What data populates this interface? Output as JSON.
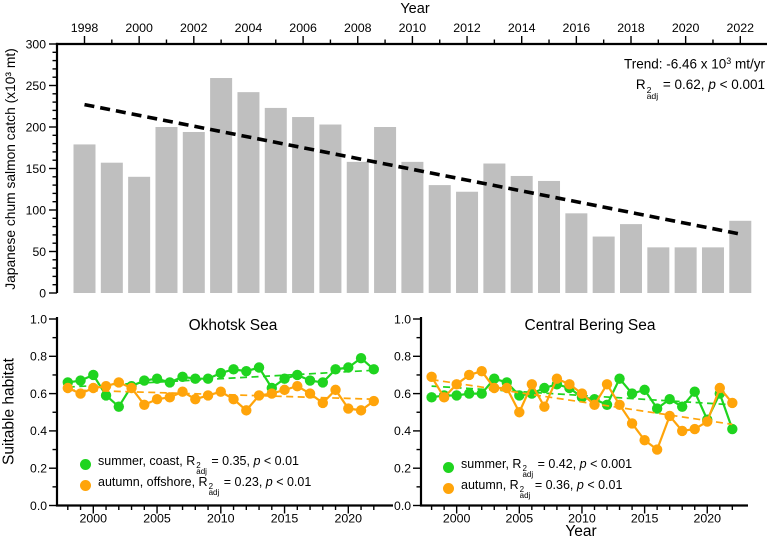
{
  "figure": {
    "background": "#ffffff",
    "text_color": "#000000",
    "shared_ylabel": "Suitable habitat"
  },
  "chart_data": [
    {
      "id": "catch",
      "type": "bar",
      "top_axis_label": "Year",
      "ylabel": "Japanese chum salmon catch (x10³ mt)",
      "ylim": [
        0,
        300
      ],
      "ytick_major_step": 50,
      "ytick_minor_step": 10,
      "grid": false,
      "xtick_major_years": [
        1998,
        2000,
        2002,
        2004,
        2006,
        2008,
        2010,
        2012,
        2014,
        2016,
        2018,
        2020,
        2022
      ],
      "years": [
        1998,
        1999,
        2000,
        2001,
        2002,
        2003,
        2004,
        2005,
        2006,
        2007,
        2008,
        2009,
        2010,
        2011,
        2012,
        2013,
        2014,
        2015,
        2016,
        2017,
        2018,
        2019,
        2020,
        2021,
        2022
      ],
      "values": [
        179,
        157,
        140,
        200,
        194,
        259,
        242,
        223,
        212,
        203,
        158,
        200,
        158,
        130,
        122,
        156,
        141,
        135,
        96,
        68,
        83,
        55,
        55,
        55,
        87
      ],
      "bar_color": "#bfbfbf",
      "trend": {
        "x0": 1998,
        "v0": 227,
        "x1": 2022,
        "v1": 71,
        "color": "#000000",
        "style": "dashed",
        "slope_per_year": -6.46
      },
      "annotation": {
        "line1": [
          {
            "t": "Trend: -6.46 x 10"
          },
          {
            "t": "3",
            "s": "sup"
          },
          {
            "t": " mt/yr"
          }
        ],
        "line2": [
          {
            "t": "R"
          },
          {
            "s": "stack",
            "top": "2",
            "bot": "adj"
          },
          {
            "t": " = 0.62, "
          },
          {
            "t": "p",
            "s": "i"
          },
          {
            "t": " < 0.001"
          }
        ]
      }
    },
    {
      "id": "okhotsk",
      "type": "line",
      "title": "Okhotsk Sea",
      "ylim": [
        0,
        1
      ],
      "ytick_major_step": 0.2,
      "ytick_minor_step": 0.1,
      "grid": false,
      "xtick_major_years": [
        2000,
        2005,
        2010,
        2015,
        2020
      ],
      "years": [
        1998,
        1999,
        2000,
        2001,
        2002,
        2003,
        2004,
        2005,
        2006,
        2007,
        2008,
        2009,
        2010,
        2011,
        2012,
        2013,
        2014,
        2015,
        2016,
        2017,
        2018,
        2019,
        2020,
        2021,
        2022
      ],
      "series": [
        {
          "name": "summer-coast",
          "color": "#1fd41f",
          "values": [
            0.66,
            0.67,
            0.7,
            0.59,
            0.53,
            0.64,
            0.67,
            0.68,
            0.66,
            0.69,
            0.68,
            0.68,
            0.71,
            0.73,
            0.72,
            0.74,
            0.63,
            0.68,
            0.7,
            0.67,
            0.66,
            0.73,
            0.74,
            0.79,
            0.73
          ],
          "trend": {
            "v0": 0.635,
            "v1": 0.725
          },
          "legend": [
            {
              "t": "summer, coast, R"
            },
            {
              "s": "stack",
              "top": "2",
              "bot": "adj"
            },
            {
              "t": " = 0.35, "
            },
            {
              "t": "p",
              "s": "i"
            },
            {
              "t": " < 0.01"
            }
          ]
        },
        {
          "name": "autumn-offshore",
          "color": "#ffa40a",
          "values": [
            0.63,
            0.6,
            0.63,
            0.64,
            0.66,
            0.63,
            0.54,
            0.57,
            0.58,
            0.61,
            0.57,
            0.59,
            0.61,
            0.57,
            0.51,
            0.59,
            0.6,
            0.62,
            0.64,
            0.6,
            0.55,
            0.62,
            0.52,
            0.51,
            0.56
          ],
          "trend": {
            "v0": 0.62,
            "v1": 0.57
          },
          "legend": [
            {
              "t": "autumn, offshore, R"
            },
            {
              "s": "stack",
              "top": "2",
              "bot": "adj"
            },
            {
              "t": " = 0.23, "
            },
            {
              "t": "p",
              "s": "i"
            },
            {
              "t": " < 0.01"
            }
          ]
        }
      ]
    },
    {
      "id": "bering",
      "type": "line",
      "title": "Central Bering Sea",
      "xlabel": "Year",
      "ylim": [
        0,
        1
      ],
      "ytick_major_step": 0.2,
      "ytick_minor_step": 0.1,
      "grid": false,
      "xtick_major_years": [
        2000,
        2005,
        2010,
        2015,
        2020
      ],
      "years": [
        1998,
        1999,
        2000,
        2001,
        2002,
        2003,
        2004,
        2005,
        2006,
        2007,
        2008,
        2009,
        2010,
        2011,
        2012,
        2013,
        2014,
        2015,
        2016,
        2017,
        2018,
        2019,
        2020,
        2021,
        2022
      ],
      "series": [
        {
          "name": "summer",
          "color": "#1fd41f",
          "values": [
            0.58,
            0.59,
            0.59,
            0.6,
            0.6,
            0.68,
            0.66,
            0.59,
            0.6,
            0.63,
            0.65,
            0.63,
            0.58,
            0.57,
            0.54,
            0.68,
            0.6,
            0.62,
            0.52,
            0.57,
            0.53,
            0.61,
            0.46,
            0.6,
            0.41
          ],
          "trend": {
            "v0": 0.64,
            "v1": 0.54
          },
          "legend": [
            {
              "t": "summer, R"
            },
            {
              "s": "stack",
              "top": "2",
              "bot": "adj"
            },
            {
              "t": " = 0.42, "
            },
            {
              "t": "p",
              "s": "i"
            },
            {
              "t": " < 0.001"
            }
          ]
        },
        {
          "name": "autumn",
          "color": "#ffa40a",
          "values": [
            0.69,
            0.58,
            0.65,
            0.7,
            0.72,
            0.63,
            0.63,
            0.5,
            0.65,
            0.53,
            0.68,
            0.65,
            0.6,
            0.54,
            0.65,
            0.54,
            0.44,
            0.35,
            0.3,
            0.48,
            0.4,
            0.41,
            0.45,
            0.63,
            0.55
          ],
          "trend": {
            "v0": 0.675,
            "v1": 0.435
          },
          "legend": [
            {
              "t": "autumn,  R"
            },
            {
              "s": "stack",
              "top": "2",
              "bot": "adj"
            },
            {
              "t": " = 0.36, "
            },
            {
              "t": "p",
              "s": "i"
            },
            {
              "t": " < 0.01"
            }
          ]
        }
      ]
    }
  ]
}
